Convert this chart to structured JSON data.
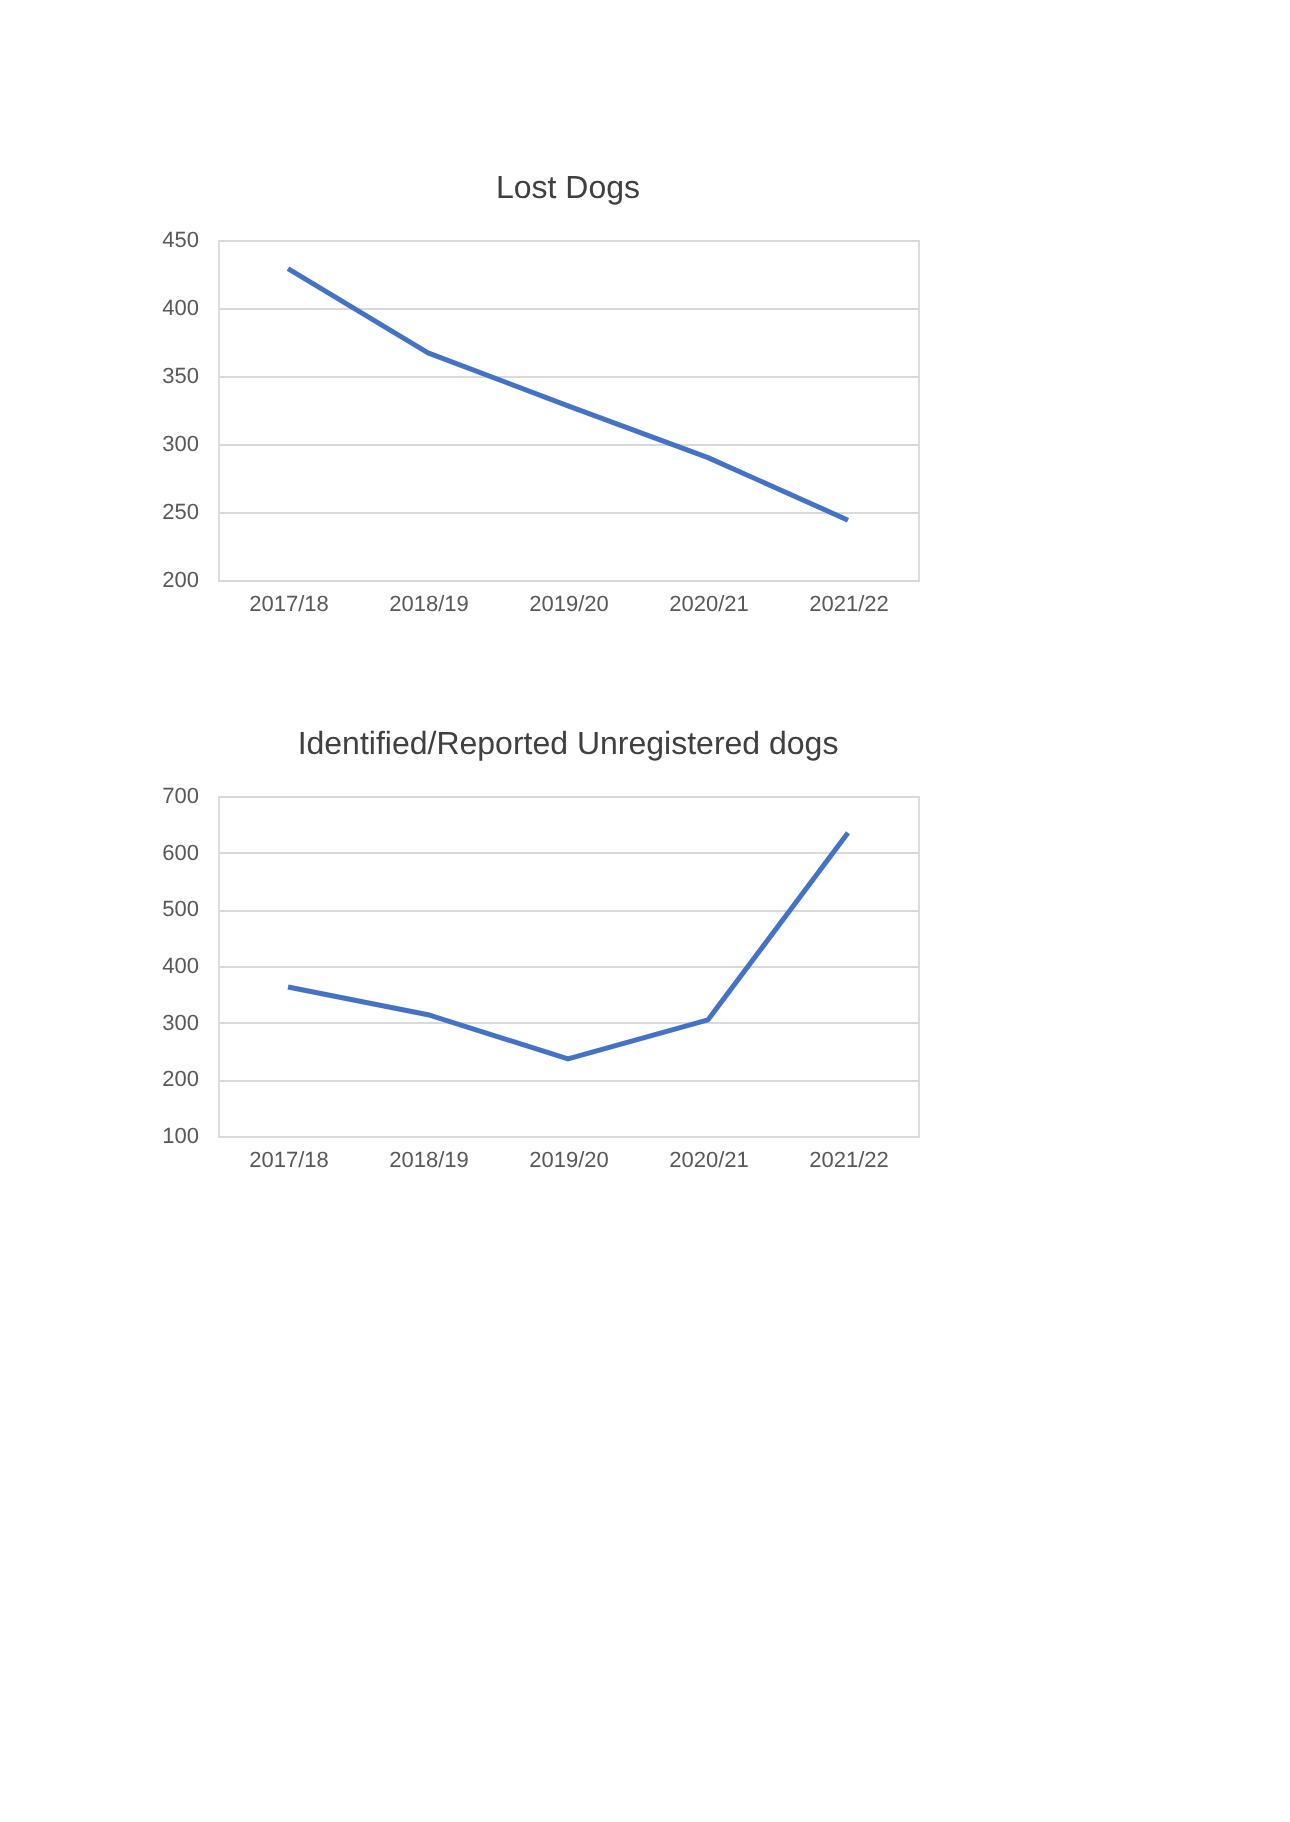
{
  "chart_data": [
    {
      "type": "line",
      "title": "Lost Dogs",
      "categories": [
        "2017/18",
        "2018/19",
        "2019/20",
        "2020/21",
        "2021/22"
      ],
      "series": [
        {
          "color": "#4472c4",
          "values": [
            429,
            367,
            328,
            290,
            244
          ]
        }
      ],
      "ylim": [
        200,
        450
      ],
      "yticks": [
        200,
        250,
        300,
        350,
        400,
        450
      ],
      "grid": "y",
      "legend": false
    },
    {
      "type": "line",
      "title": "Identified/Reported Unregistered dogs",
      "categories": [
        "2017/18",
        "2018/19",
        "2019/20",
        "2020/21",
        "2021/22"
      ],
      "series": [
        {
          "color": "#4472c4",
          "values": [
            363,
            314,
            236,
            305,
            635
          ]
        }
      ],
      "ylim": [
        100,
        700
      ],
      "yticks": [
        100,
        200,
        300,
        400,
        500,
        600,
        700
      ],
      "grid": "y",
      "legend": false
    }
  ]
}
